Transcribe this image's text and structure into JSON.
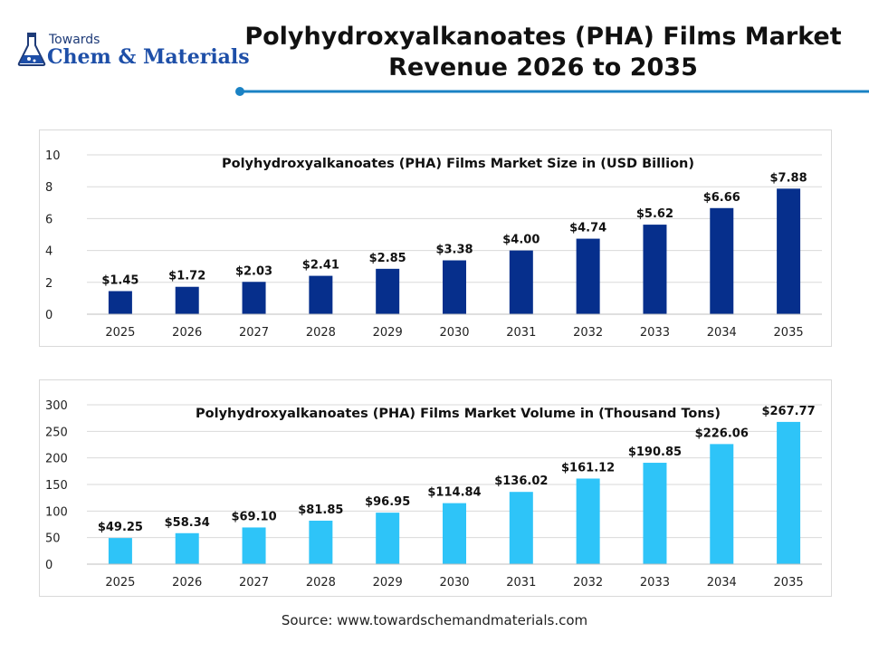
{
  "header": {
    "brand_small": "Towards",
    "brand_large": "Chem & Materials",
    "title_line1": "Polyhydroxyalkanoates (PHA) Films Market",
    "title_line2": "Revenue 2026 to 2035",
    "accent_color": "#1a82c4"
  },
  "source": "Source: www.towardschemandmaterials.com",
  "chart_data": [
    {
      "type": "bar",
      "title": "Polyhydroxyalkanoates (PHA) Films Market Size in (USD Billion)",
      "categories": [
        "2025",
        "2026",
        "2027",
        "2028",
        "2029",
        "2030",
        "2031",
        "2032",
        "2033",
        "2034",
        "2035"
      ],
      "values": [
        1.45,
        1.72,
        2.03,
        2.41,
        2.85,
        3.38,
        4.0,
        4.74,
        5.62,
        6.66,
        7.88
      ],
      "data_labels": [
        "$1.45",
        "$1.72",
        "$2.03",
        "$2.41",
        "$2.85",
        "$3.38",
        "$4.00",
        "$4.74",
        "$5.62",
        "$6.66",
        "$7.88"
      ],
      "y_ticks": [
        0,
        2,
        4,
        6,
        8,
        10
      ],
      "ylim": [
        0,
        10
      ],
      "color": "#062f8c",
      "grid": true,
      "xlabel": "",
      "ylabel": ""
    },
    {
      "type": "bar",
      "title": "Polyhydroxyalkanoates (PHA) Films Market Volume in (Thousand Tons)",
      "categories": [
        "2025",
        "2026",
        "2027",
        "2028",
        "2029",
        "2030",
        "2031",
        "2032",
        "2033",
        "2034",
        "2035"
      ],
      "values": [
        49.25,
        58.34,
        69.1,
        81.85,
        96.95,
        114.84,
        136.02,
        161.12,
        190.85,
        226.06,
        267.77
      ],
      "data_labels": [
        "$49.25",
        "$58.34",
        "$69.10",
        "$81.85",
        "$96.95",
        "$114.84",
        "$136.02",
        "$161.12",
        "$190.85",
        "$226.06",
        "$267.77"
      ],
      "y_ticks": [
        0,
        50,
        100,
        150,
        200,
        250,
        300
      ],
      "ylim": [
        0,
        300
      ],
      "color": "#2ec4f8",
      "grid": true,
      "xlabel": "",
      "ylabel": ""
    }
  ]
}
